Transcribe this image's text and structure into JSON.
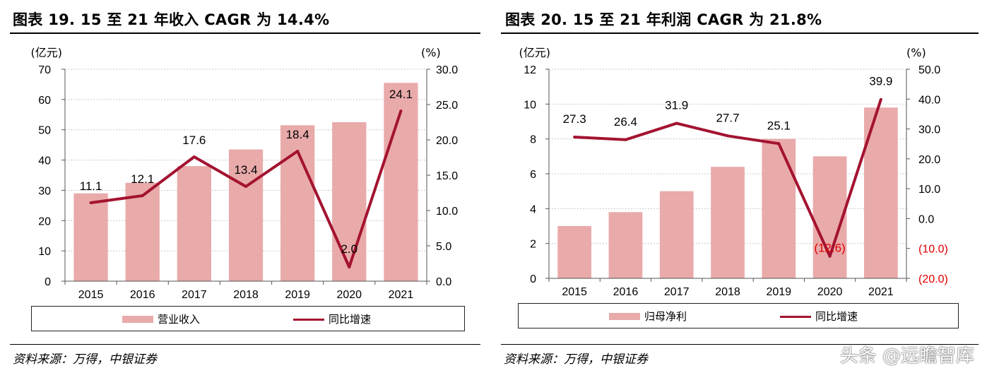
{
  "left": {
    "title": "图表 19. 15 至 21 年收入 CAGR 为 14.4%",
    "source": "资料来源：万得，中银证券",
    "legend_bar": "营业收入",
    "legend_line": "同比增速"
  },
  "right": {
    "title": "图表 20. 15 至 21 年利润 CAGR 为 21.8%",
    "source": "资料来源：万得，中银证券",
    "legend_bar": "归母净利",
    "legend_line": "同比增速"
  },
  "watermark": "头条 @远瞻智库",
  "colors": {
    "bar": "#e9aaaa",
    "line": "#a31330",
    "negative": "#e00000"
  },
  "chart_data": [
    {
      "type": "bar+line",
      "title": "图表 19. 15 至 21 年收入 CAGR 为 14.4%",
      "categories": [
        "2015",
        "2016",
        "2017",
        "2018",
        "2019",
        "2020",
        "2021"
      ],
      "y_left_unit": "(亿元)",
      "y_right_unit": "(%)",
      "y_left_ticks": [
        "0",
        "10",
        "20",
        "30",
        "40",
        "50",
        "60",
        "70"
      ],
      "y_right_ticks": [
        "0.0",
        "5.0",
        "10.0",
        "15.0",
        "20.0",
        "25.0",
        "30.0"
      ],
      "y_left_range": [
        0,
        70
      ],
      "y_right_range": [
        0,
        30
      ],
      "series": [
        {
          "name": "营业收入",
          "axis": "left",
          "kind": "bar",
          "values": [
            29,
            32.5,
            38,
            43.5,
            51.5,
            52.5,
            65.5
          ]
        },
        {
          "name": "同比增速",
          "axis": "right",
          "kind": "line",
          "values": [
            11.1,
            12.1,
            17.6,
            13.4,
            18.4,
            2.0,
            24.1
          ],
          "labels": [
            "11.1",
            "12.1",
            "17.6",
            "13.4",
            "18.4",
            "2.0",
            "24.1"
          ]
        }
      ]
    },
    {
      "type": "bar+line",
      "title": "图表 20. 15 至 21 年利润 CAGR 为 21.8%",
      "categories": [
        "2015",
        "2016",
        "2017",
        "2018",
        "2019",
        "2020",
        "2021"
      ],
      "y_left_unit": "(亿元)",
      "y_right_unit": "(%)",
      "y_left_ticks": [
        "0",
        "2",
        "4",
        "6",
        "8",
        "10",
        "12"
      ],
      "y_right_ticks": [
        "(20.0)",
        "(10.0)",
        "0.0",
        "10.0",
        "20.0",
        "30.0",
        "40.0",
        "50.0"
      ],
      "y_left_range": [
        0,
        12
      ],
      "y_right_range": [
        -20,
        50
      ],
      "series": [
        {
          "name": "归母净利",
          "axis": "left",
          "kind": "bar",
          "values": [
            3.0,
            3.8,
            5.0,
            6.4,
            8.0,
            7.0,
            9.8
          ]
        },
        {
          "name": "同比增速",
          "axis": "right",
          "kind": "line",
          "values": [
            27.3,
            26.4,
            31.9,
            27.7,
            25.1,
            -12.6,
            39.9
          ],
          "labels": [
            "27.3",
            "26.4",
            "31.9",
            "27.7",
            "25.1",
            "(12.6)",
            "39.9"
          ]
        }
      ]
    }
  ]
}
